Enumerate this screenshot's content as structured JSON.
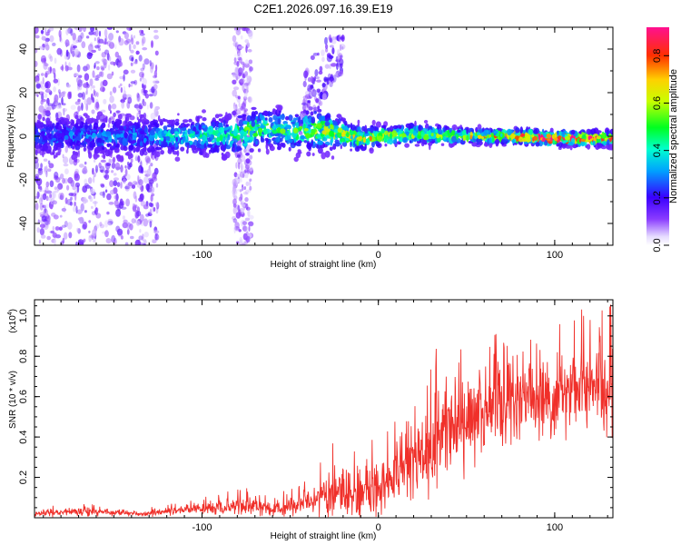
{
  "title": "C2E1.2026.097.16.39.E19",
  "colors": {
    "signal": "#f0302a",
    "frame": "#000000",
    "background": "#ffffff"
  },
  "chart_data": [
    {
      "type": "heatmap",
      "name": "spectrogram",
      "xlabel": "Height of straight line (km)",
      "ylabel": "Frequency (Hz)",
      "xlim": [
        -195,
        133
      ],
      "ylim": [
        -50,
        50
      ],
      "xticks": [
        -100,
        0,
        100
      ],
      "xtick_labels": [
        "-100",
        "0",
        "100"
      ],
      "yticks": [
        -40,
        -20,
        0,
        20,
        40
      ],
      "ytick_labels": [
        "-40",
        "-20",
        "0",
        "20",
        "40"
      ],
      "colorbar": {
        "label": "Normalized spectral amplitude",
        "colormap": "rainbow",
        "range": [
          0,
          0.92
        ],
        "ticks": [
          0.0,
          0.2,
          0.4,
          0.6,
          0.8
        ],
        "tick_labels": [
          "0.0",
          "0.2",
          "0.4",
          "0.6",
          "0.8"
        ]
      },
      "band_profile": {
        "x": [
          -195,
          -130,
          -120,
          -85,
          -75,
          -65,
          -45,
          -35,
          -20,
          -10,
          0,
          20,
          50,
          80,
          100,
          133
        ],
        "center_hz": [
          0,
          0,
          0,
          0,
          2,
          4,
          2,
          3,
          1,
          -1,
          0,
          1,
          0,
          0,
          -1,
          -1
        ],
        "halfwidth_hz": [
          8,
          8,
          7,
          8,
          10,
          8,
          8,
          9,
          6,
          5,
          4,
          4,
          3,
          3,
          3,
          3
        ],
        "peak_amplitude": [
          0.18,
          0.2,
          0.3,
          0.35,
          0.45,
          0.4,
          0.45,
          0.5,
          0.5,
          0.6,
          0.6,
          0.5,
          0.55,
          0.8,
          0.9,
          0.75
        ]
      },
      "scatter_regions": [
        {
          "x_range": [
            -195,
            -125
          ],
          "freq_range_hz": [
            -50,
            50
          ],
          "amplitude": 0.08
        },
        {
          "x_range": [
            -82,
            -72
          ],
          "freq_range_hz": [
            -50,
            50
          ],
          "amplitude": 0.06
        },
        {
          "x_range": [
            -45,
            -20
          ],
          "freq_range_hz": [
            0,
            45
          ],
          "amplitude": 0.1
        }
      ]
    },
    {
      "type": "line",
      "name": "snr",
      "xlabel": "Height of straight line (km)",
      "ylabel": "SNR (10 * v/v)",
      "y_scale_label": "(x10",
      "y_scale_exponent": "4",
      "xlim": [
        -195,
        133
      ],
      "ylim": [
        0,
        1.08
      ],
      "xticks": [
        -100,
        0,
        100
      ],
      "xtick_labels": [
        "-100",
        "0",
        "100"
      ],
      "yticks": [
        0.2,
        0.4,
        0.6,
        0.8,
        1.0
      ],
      "ytick_labels": [
        "0.2",
        "0.4",
        "0.6",
        "0.8",
        "1.0"
      ],
      "series": [
        {
          "name": "SNR",
          "color": "#f0302a",
          "envelope": {
            "x": [
              -195,
              -170,
              -150,
              -130,
              -110,
              -90,
              -75,
              -60,
              -45,
              -30,
              -20,
              -10,
              0,
              10,
              20,
              30,
              40,
              50,
              60,
              70,
              80,
              90,
              100,
              110,
              120,
              133
            ],
            "mean": [
              0.02,
              0.03,
              0.025,
              0.02,
              0.04,
              0.05,
              0.06,
              0.04,
              0.06,
              0.1,
              0.12,
              0.11,
              0.15,
              0.22,
              0.3,
              0.35,
              0.42,
              0.48,
              0.52,
              0.55,
              0.58,
              0.6,
              0.62,
              0.63,
              0.65,
              0.65
            ],
            "spread": [
              0.015,
              0.02,
              0.015,
              0.015,
              0.025,
              0.03,
              0.05,
              0.03,
              0.05,
              0.1,
              0.15,
              0.12,
              0.12,
              0.15,
              0.2,
              0.22,
              0.22,
              0.22,
              0.22,
              0.2,
              0.2,
              0.2,
              0.2,
              0.2,
              0.2,
              0.22
            ]
          }
        }
      ]
    }
  ]
}
